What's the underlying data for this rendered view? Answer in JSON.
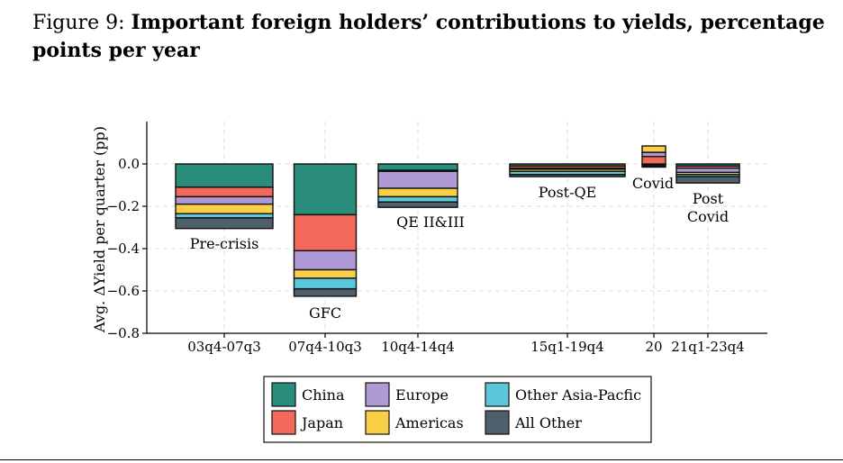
{
  "figure": {
    "label": "Figure 9:",
    "title": "Important foreign holders’ contributions to yields, percentage points per year"
  },
  "chart_data": {
    "type": "bar",
    "stacked": true,
    "ylabel": "Avg. ΔYield per quarter (pp)",
    "ylim": [
      -0.8,
      0.2
    ],
    "yticks": [
      0.0,
      -0.2,
      -0.4,
      -0.6,
      -0.8
    ],
    "ytick_labels": [
      "0.0",
      "−0.2",
      "−0.4",
      "−0.6",
      "−0.8"
    ],
    "grid": true,
    "legend_position": "bottom-center",
    "categories": [
      "03q4-07q3",
      "07q4-10q3",
      "10q4-14q4",
      "15q1-19q4",
      "20",
      "21q1-23q4"
    ],
    "annotations": [
      "Pre-crisis",
      "GFC",
      "QE II&III",
      "Post-QE",
      "Covid",
      "Post\nCovid"
    ],
    "series": [
      {
        "name": "China",
        "color": "#2a8c7a",
        "values": [
          -0.11,
          -0.24,
          -0.03,
          -0.01,
          -0.005,
          -0.01
        ]
      },
      {
        "name": "Japan",
        "color": "#f4685a",
        "values": [
          -0.045,
          -0.17,
          -0.005,
          -0.01,
          0.035,
          -0.01
        ]
      },
      {
        "name": "Europe",
        "color": "#b09ad6",
        "values": [
          -0.035,
          -0.09,
          -0.08,
          -0.005,
          0.02,
          -0.02
        ]
      },
      {
        "name": "Americas",
        "color": "#f8cf47",
        "values": [
          -0.045,
          -0.04,
          -0.04,
          -0.01,
          0.03,
          -0.01
        ]
      },
      {
        "name": "Other Asia-Pacfic",
        "color": "#5ac8da",
        "values": [
          -0.02,
          -0.05,
          -0.025,
          -0.015,
          -0.005,
          -0.01
        ]
      },
      {
        "name": "All Other",
        "color": "#4f5f6b",
        "values": [
          -0.05,
          -0.035,
          -0.025,
          -0.01,
          -0.005,
          -0.03
        ]
      }
    ]
  }
}
